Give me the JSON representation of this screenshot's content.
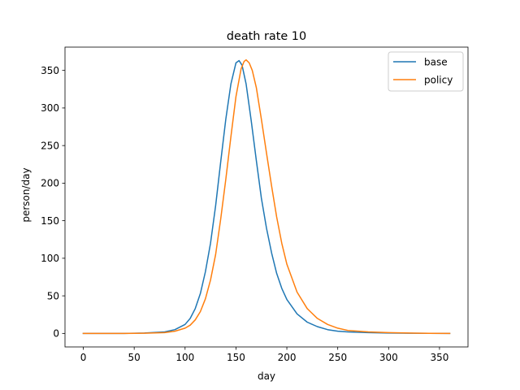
{
  "chart_data": {
    "type": "line",
    "title": "death rate 10",
    "xlabel": "day",
    "ylabel": "person/day",
    "xlim": [
      -18,
      378
    ],
    "ylim": [
      -18,
      381
    ],
    "xticks": [
      0,
      50,
      100,
      150,
      200,
      250,
      300,
      350
    ],
    "yticks": [
      0,
      50,
      100,
      150,
      200,
      250,
      300,
      350
    ],
    "grid": false,
    "legend_position": "top-right",
    "series": [
      {
        "name": "base",
        "color": "#1f77b4",
        "x": [
          0,
          20,
          40,
          60,
          80,
          90,
          100,
          105,
          110,
          115,
          120,
          125,
          130,
          135,
          140,
          145,
          150,
          153,
          156,
          160,
          165,
          170,
          175,
          180,
          185,
          190,
          195,
          200,
          210,
          220,
          230,
          240,
          250,
          260,
          280,
          300,
          320,
          340,
          360
        ],
        "y": [
          0,
          0,
          0,
          0.5,
          2,
          5,
          12,
          20,
          33,
          53,
          82,
          120,
          170,
          228,
          285,
          332,
          360,
          363,
          357,
          332,
          283,
          230,
          180,
          140,
          107,
          80,
          60,
          45,
          26,
          15,
          9,
          5,
          3,
          2,
          1,
          0.5,
          0.3,
          0.1,
          0
        ]
      },
      {
        "name": "policy",
        "color": "#ff7f0e",
        "x": [
          0,
          20,
          40,
          60,
          80,
          90,
          100,
          105,
          110,
          115,
          120,
          125,
          130,
          135,
          140,
          145,
          150,
          155,
          158,
          160,
          163,
          166,
          170,
          175,
          180,
          185,
          190,
          195,
          200,
          210,
          220,
          230,
          240,
          250,
          260,
          280,
          300,
          320,
          340,
          360
        ],
        "y": [
          0,
          0,
          0,
          0.3,
          1,
          3,
          7,
          11,
          18,
          29,
          46,
          71,
          105,
          152,
          205,
          262,
          315,
          352,
          362,
          364,
          360,
          350,
          327,
          285,
          240,
          196,
          155,
          120,
          92,
          55,
          33,
          20,
          12,
          7,
          4,
          2,
          1,
          0.5,
          0.2,
          0
        ]
      }
    ]
  }
}
